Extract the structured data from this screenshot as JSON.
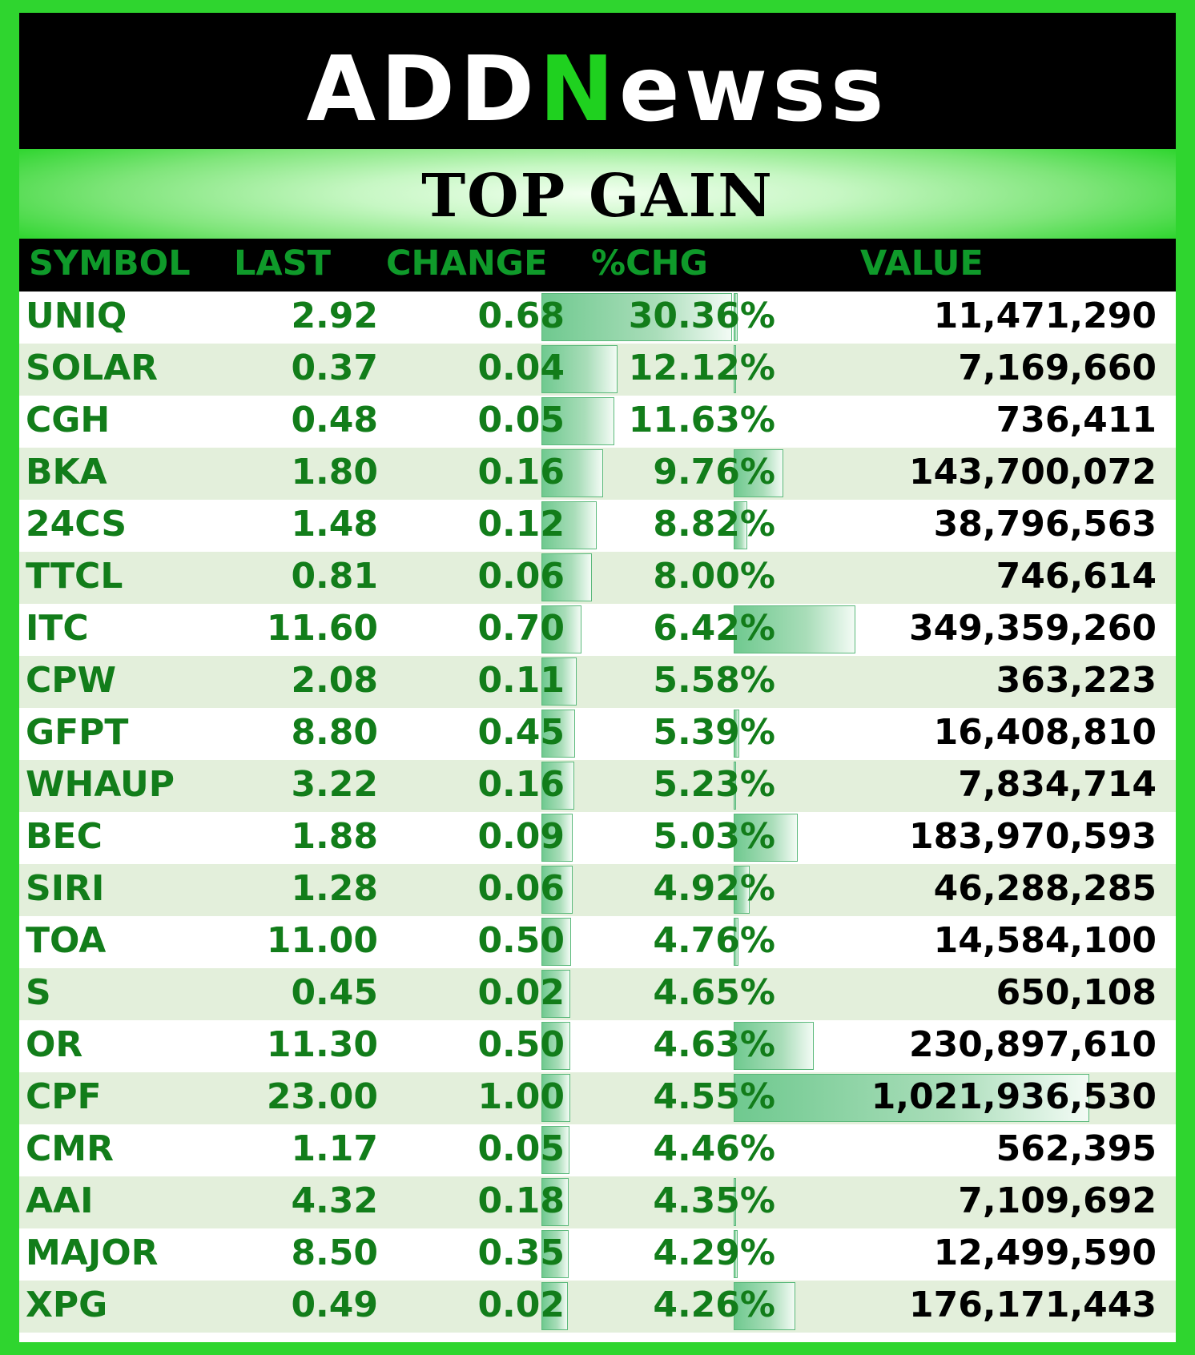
{
  "brand": {
    "pre": "ADD",
    "n": "N",
    "post": "ewss"
  },
  "title": "TOP GAIN",
  "columns": {
    "symbol": "SYMBOL",
    "last": "LAST",
    "change": "CHANGE",
    "pct": "%CHG",
    "value": "VALUE"
  },
  "colors": {
    "background": "#2fd52f",
    "header_text": "#0f9a2a",
    "data_text": "#127d1a",
    "bar": "#6fc98f"
  },
  "rows": [
    {
      "symbol": "UNIQ",
      "last": "2.92",
      "change": "0.68",
      "pct": "30.36%",
      "value": "11,471,290"
    },
    {
      "symbol": "SOLAR",
      "last": "0.37",
      "change": "0.04",
      "pct": "12.12%",
      "value": "7,169,660"
    },
    {
      "symbol": "CGH",
      "last": "0.48",
      "change": "0.05",
      "pct": "11.63%",
      "value": "736,411"
    },
    {
      "symbol": "BKA",
      "last": "1.80",
      "change": "0.16",
      "pct": "9.76%",
      "value": "143,700,072"
    },
    {
      "symbol": "24CS",
      "last": "1.48",
      "change": "0.12",
      "pct": "8.82%",
      "value": "38,796,563"
    },
    {
      "symbol": "TTCL",
      "last": "0.81",
      "change": "0.06",
      "pct": "8.00%",
      "value": "746,614"
    },
    {
      "symbol": "ITC",
      "last": "11.60",
      "change": "0.70",
      "pct": "6.42%",
      "value": "349,359,260"
    },
    {
      "symbol": "CPW",
      "last": "2.08",
      "change": "0.11",
      "pct": "5.58%",
      "value": "363,223"
    },
    {
      "symbol": "GFPT",
      "last": "8.80",
      "change": "0.45",
      "pct": "5.39%",
      "value": "16,408,810"
    },
    {
      "symbol": "WHAUP",
      "last": "3.22",
      "change": "0.16",
      "pct": "5.23%",
      "value": "7,834,714"
    },
    {
      "symbol": "BEC",
      "last": "1.88",
      "change": "0.09",
      "pct": "5.03%",
      "value": "183,970,593"
    },
    {
      "symbol": "SIRI",
      "last": "1.28",
      "change": "0.06",
      "pct": "4.92%",
      "value": "46,288,285"
    },
    {
      "symbol": "TOA",
      "last": "11.00",
      "change": "0.50",
      "pct": "4.76%",
      "value": "14,584,100"
    },
    {
      "symbol": "S",
      "last": "0.45",
      "change": "0.02",
      "pct": "4.65%",
      "value": "650,108"
    },
    {
      "symbol": "OR",
      "last": "11.30",
      "change": "0.50",
      "pct": "4.63%",
      "value": "230,897,610"
    },
    {
      "symbol": "CPF",
      "last": "23.00",
      "change": "1.00",
      "pct": "4.55%",
      "value": "1,021,936,530"
    },
    {
      "symbol": "CMR",
      "last": "1.17",
      "change": "0.05",
      "pct": "4.46%",
      "value": "562,395"
    },
    {
      "symbol": "AAI",
      "last": "4.32",
      "change": "0.18",
      "pct": "4.35%",
      "value": "7,109,692"
    },
    {
      "symbol": "MAJOR",
      "last": "8.50",
      "change": "0.35",
      "pct": "4.29%",
      "value": "12,499,590"
    },
    {
      "symbol": "XPG",
      "last": "0.49",
      "change": "0.02",
      "pct": "4.26%",
      "value": "176,171,443"
    }
  ]
}
